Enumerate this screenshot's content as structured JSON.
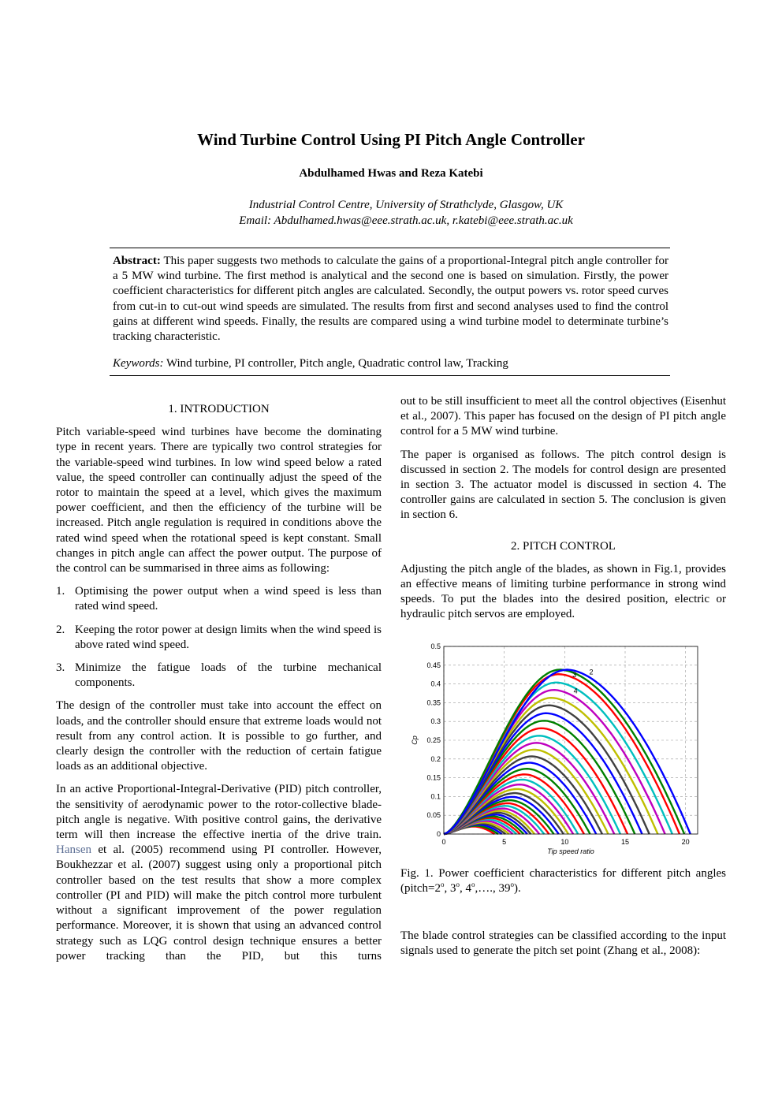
{
  "header": {
    "title": "Wind Turbine Control Using PI Pitch Angle Controller",
    "authors": "Abdulhamed Hwas and Reza Katebi",
    "affiliation": "Industrial Control Centre, University of Strathclyde, Glasgow, UK",
    "email": "Email: Abdulhamed.hwas@eee.strath.ac.uk, r.katebi@eee.strath.ac.uk"
  },
  "abstract": {
    "label": "Abstract:",
    "text": "This paper suggests two methods to calculate the gains of a proportional-Integral pitch angle controller for a 5 MW wind turbine. The first method is analytical and the second one is based on simulation. Firstly, the power coefficient characteristics for different pitch angles are calculated. Secondly, the output powers vs. rotor speed curves from cut-in to cut-out wind speeds are simulated. The results from first and second analyses used to find the control gains at different wind speeds. Finally, the results are compared using a wind turbine model to determinate turbine’s tracking characteristic."
  },
  "keywords": {
    "label": "Keywords:",
    "text": "Wind turbine, PI controller, Pitch angle, Quadratic control law, Tracking"
  },
  "section1": {
    "heading": "1. INTRODUCTION",
    "p1": "Pitch variable-speed wind turbines have become the dominating type in recent years. There are typically two control strategies for the variable-speed wind turbines. In low wind speed below a rated value, the speed controller can continually adjust the speed of the rotor to maintain the speed at a level, which gives the maximum power coefficient, and then the efficiency of the turbine will be increased. Pitch angle regulation is required in conditions above the rated wind speed when the rotational speed is kept constant. Small changes in pitch angle can affect the power output. The purpose of the control can be summarised in three aims as following:",
    "list": [
      {
        "num": "1.",
        "text": "Optimising the power output when a wind speed is less than rated wind speed."
      },
      {
        "num": "2.",
        "text": "Keeping the rotor power at design limits when the wind speed is above rated wind speed."
      },
      {
        "num": "3.",
        "text": "Minimize the fatigue loads of the turbine mechanical components."
      }
    ],
    "p2": "The design of the controller must take into account the effect on loads, and the controller should ensure that extreme loads would not result from any control action. It is possible to go further, and clearly design the controller with the reduction of certain fatigue loads as an additional objective.",
    "p3_a": "In an active Proportional-Integral-Derivative (PID) pitch controller, the sensitivity of aerodynamic power to the rotor-collective blade-pitch angle is negative. With positive control gains, the derivative term will then increase the effective inertia of the drive train.",
    "p3_cite": "Hansen",
    "p3_b": "et al. (2005) recommend using PI controller. However, Boukhezzar et al. (2007) suggest using only a proportional pitch controller based on the test results that show a more complex controller (PI and PID) will make the pitch control more turbulent without a significant improvement of the power regulation performance. Moreover, it is shown that using an advanced control strategy such as LQG control design technique ensures a better power tracking than the PID, but this turns",
    "p3_c": "out to be still insufficient to meet all the control objectives (Eisenhut et al., 2007). This paper has focused on the design of PI pitch angle control for a 5 MW wind turbine.",
    "p4": "The paper is organised as follows. The pitch control design is discussed in section 2. The models for control design are presented in section 3. The actuator model is discussed in section 4. The controller gains are calculated in section 5. The conclusion is given in section 6."
  },
  "section2": {
    "heading": "2. PITCH CONTROL",
    "p1": "Adjusting the pitch angle of the blades, as shown in Fig.1, provides an effective means of limiting turbine performance in strong wind speeds. To put the blades into the desired position, electric or hydraulic pitch servos are employed.",
    "p2": "The blade control strategies can be classified according to the input signals used to generate the pitch set point (Zhang et al., 2008):"
  },
  "figure1": {
    "caption_a": "Fig. 1. Power coefficient characteristics for different pitch angles (pitch=2",
    "caption_b": ", 3",
    "caption_c": ", 4",
    "caption_d": ",…., 39",
    "caption_e": ").",
    "deg": "o"
  },
  "chart_data": {
    "type": "line",
    "xlabel": "Tip speed ratio",
    "ylabel": "Cp",
    "xlim": [
      0,
      21
    ],
    "ylim": [
      0,
      0.5
    ],
    "xticks": [
      0,
      5,
      10,
      15,
      20
    ],
    "yticks": [
      0,
      0.05,
      0.1,
      0.15,
      0.2,
      0.25,
      0.3,
      0.35,
      0.4,
      0.45,
      0.5
    ],
    "ytick_labels": [
      "0",
      "0.05",
      "0.1",
      "0.15",
      "0.2",
      "0.25",
      "0.3",
      "0.35",
      "0.4",
      "0.45",
      "0.5"
    ],
    "grid": true,
    "annotations": [
      {
        "text": "2",
        "x": 12.2,
        "y": 0.425
      },
      {
        "text": "3",
        "x": 10.8,
        "y": 0.418
      },
      {
        "text": "4",
        "x": 10.9,
        "y": 0.375
      }
    ],
    "series_pitch": [
      2,
      3,
      4,
      5,
      6,
      7,
      8,
      9,
      10,
      11,
      12,
      13,
      14,
      15,
      16,
      17,
      18,
      19,
      20,
      21,
      22,
      23,
      24,
      25,
      26,
      27,
      28,
      29,
      30,
      31,
      32,
      33,
      34,
      35,
      36,
      37,
      38,
      39
    ],
    "series_peak_cp": [
      0.438,
      0.438,
      0.426,
      0.404,
      0.384,
      0.363,
      0.343,
      0.322,
      0.302,
      0.282,
      0.262,
      0.243,
      0.225,
      0.207,
      0.19,
      0.174,
      0.159,
      0.145,
      0.132,
      0.12,
      0.109,
      0.099,
      0.09,
      0.082,
      0.075,
      0.068,
      0.062,
      0.057,
      0.052,
      0.047,
      0.043,
      0.039,
      0.035,
      0.031,
      0.028,
      0.025,
      0.022,
      0.02
    ],
    "series_peak_tsr": [
      10.2,
      9.6,
      9.5,
      9.3,
      9.1,
      8.9,
      8.7,
      8.5,
      8.3,
      8.1,
      7.9,
      7.7,
      7.5,
      7.3,
      7.1,
      6.9,
      6.7,
      6.5,
      6.3,
      6.1,
      5.9,
      5.7,
      5.5,
      5.3,
      5.1,
      4.9,
      4.7,
      4.5,
      4.3,
      4.1,
      3.9,
      3.7,
      3.5,
      3.3,
      3.1,
      2.9,
      2.7,
      2.5
    ],
    "series_end_tsr": [
      20.4,
      19.9,
      19.5,
      18.9,
      18.3,
      17.7,
      17.0,
      16.4,
      15.8,
      15.2,
      14.6,
      14.1,
      13.6,
      13.1,
      12.6,
      12.1,
      11.6,
      11.1,
      10.7,
      10.3,
      9.9,
      9.5,
      9.1,
      8.7,
      8.3,
      7.9,
      7.5,
      7.2,
      6.9,
      6.6,
      6.3,
      6.0,
      5.7,
      5.4,
      5.1,
      4.8,
      4.5,
      4.2
    ],
    "series_colors": [
      "#0000ff",
      "#008000",
      "#ff0000",
      "#00bfbf",
      "#bf00bf",
      "#bfbf00",
      "#404040"
    ]
  }
}
